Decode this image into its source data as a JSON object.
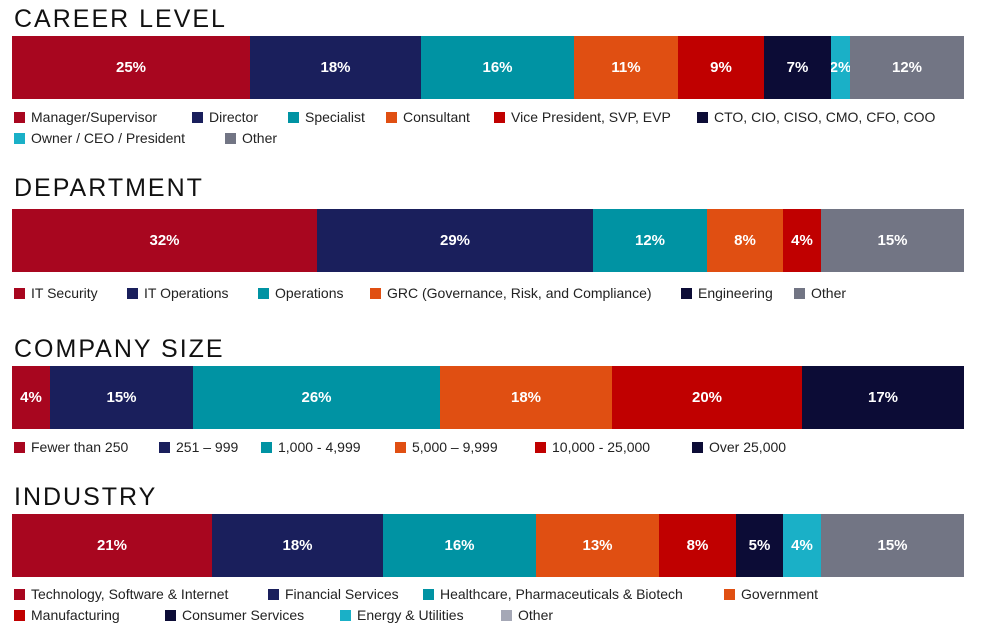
{
  "colors": {
    "crimson": "#a8061f",
    "navy": "#1a1f5c",
    "teal": "#0093a3",
    "orange": "#e04f12",
    "red": "#c00000",
    "darknavy": "#0c0c36",
    "cyan": "#1ab0c7",
    "gray": "#727584",
    "lightgray": "#a5a8b6"
  },
  "chart_data": [
    {
      "type": "bar",
      "orientation": "horizontal-stacked-100",
      "title": "CAREER LEVEL",
      "categories": [
        "Manager/Supervisor",
        "Director",
        "Specialist",
        "Consultant",
        "Vice President, SVP, EVP",
        "CTO, CIO, CISO, CMO, CFO, COO",
        "Owner / CEO / President",
        "Other"
      ],
      "values": [
        25,
        18,
        16,
        11,
        9,
        7,
        2,
        12
      ],
      "labels": [
        "25%",
        "18%",
        "16%",
        "11%",
        "9%",
        "7%",
        "2%",
        "12%"
      ],
      "colors": [
        "#a8061f",
        "#1a1f5c",
        "#0093a3",
        "#e04f12",
        "#c00000",
        "#0c0c36",
        "#1ab0c7",
        "#727584"
      ],
      "legend_rows": [
        [
          0,
          1,
          2,
          3,
          4,
          5
        ],
        [
          6,
          7
        ]
      ]
    },
    {
      "type": "bar",
      "orientation": "horizontal-stacked-100",
      "title": "DEPARTMENT",
      "categories": [
        "IT Security",
        "IT Operations",
        "Operations",
        "GRC (Governance, Risk, and Compliance)",
        "Engineering",
        "Other"
      ],
      "values": [
        32,
        29,
        12,
        8,
        4,
        15
      ],
      "labels": [
        "32%",
        "29%",
        "12%",
        "8%",
        "4%",
        "15%"
      ],
      "colors": [
        "#a8061f",
        "#1a1f5c",
        "#0093a3",
        "#e04f12",
        "#0c0c36",
        "#727584"
      ],
      "bar_colors": [
        "#a8061f",
        "#1a1f5c",
        "#0093a3",
        "#e04f12",
        "#c00000",
        "#727584"
      ],
      "legend_rows": [
        [
          0,
          1,
          2,
          3,
          4,
          5
        ]
      ]
    },
    {
      "type": "bar",
      "orientation": "horizontal-stacked-100",
      "title": "COMPANY SIZE",
      "categories": [
        "Fewer than 250",
        "251 – 999",
        "1,000 - 4,999",
        "5,000 – 9,999",
        "10,000 - 25,000",
        "Over 25,000"
      ],
      "values": [
        4,
        15,
        26,
        18,
        20,
        17
      ],
      "labels": [
        "4%",
        "15%",
        "26%",
        "18%",
        "20%",
        "17%"
      ],
      "colors": [
        "#a8061f",
        "#1a1f5c",
        "#0093a3",
        "#e04f12",
        "#c00000",
        "#0c0c36"
      ],
      "legend_rows": [
        [
          0,
          1,
          2,
          3,
          4,
          5
        ]
      ]
    },
    {
      "type": "bar",
      "orientation": "horizontal-stacked-100",
      "title": "INDUSTRY",
      "categories": [
        "Technology, Software & Internet",
        "Financial Services",
        "Healthcare, Pharmaceuticals & Biotech",
        "Government",
        "Manufacturing",
        "Consumer Services",
        "Energy & Utilities",
        "Other"
      ],
      "values": [
        21,
        18,
        16,
        13,
        8,
        5,
        4,
        15
      ],
      "labels": [
        "21%",
        "18%",
        "16%",
        "13%",
        "8%",
        "5%",
        "4%",
        "15%"
      ],
      "colors": [
        "#a8061f",
        "#1a1f5c",
        "#0093a3",
        "#e04f12",
        "#c00000",
        "#0c0c36",
        "#1ab0c7",
        "#a5a8b6"
      ],
      "bar_colors": [
        "#a8061f",
        "#1a1f5c",
        "#0093a3",
        "#e04f12",
        "#c00000",
        "#0c0c36",
        "#1ab0c7",
        "#727584"
      ],
      "legend_rows": [
        [
          0,
          1,
          2,
          3
        ],
        [
          4,
          5,
          6,
          7
        ]
      ]
    }
  ]
}
